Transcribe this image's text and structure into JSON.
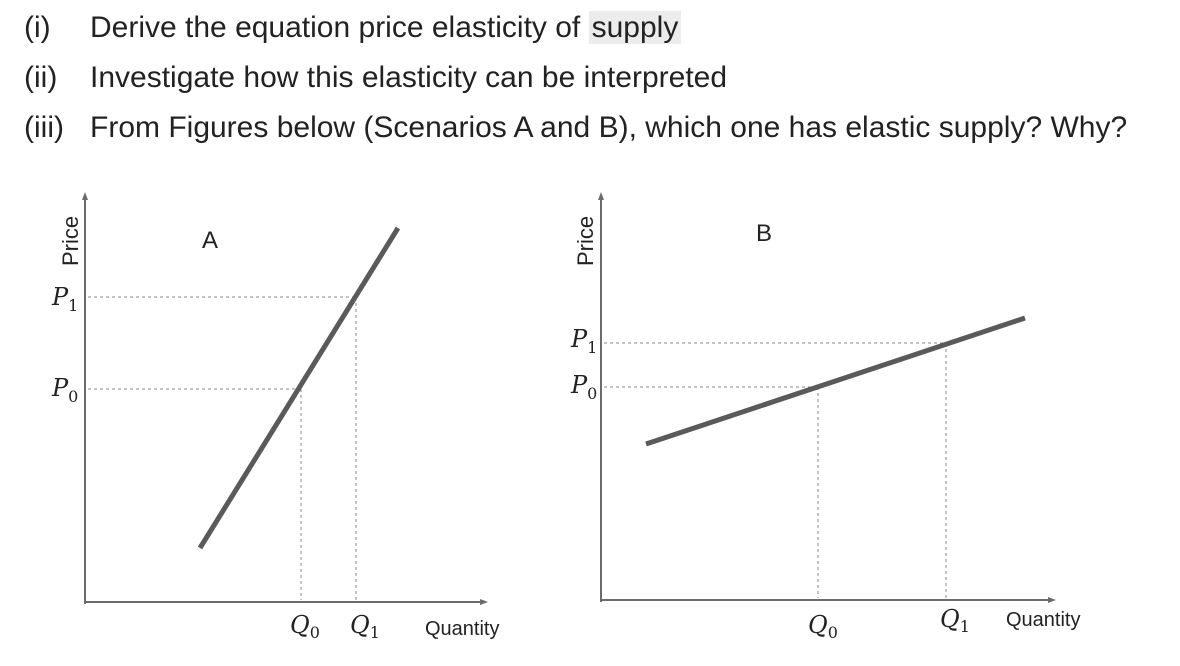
{
  "questions": [
    {
      "number": "(i)",
      "text_before": "Derive the equation price elasticity of ",
      "highlight": "supply"
    },
    {
      "number": "(ii)",
      "text": "Investigate how this elasticity can be interpreted"
    },
    {
      "number": "(iii)",
      "text": "From Figures below (Scenarios A and B), which one has elastic supply? Why?"
    }
  ],
  "figures": [
    {
      "id": "A",
      "label": "A",
      "y_axis_label": "Price",
      "x_axis_label": "Quantity",
      "price_levels": [
        "P",
        "P"
      ],
      "price_subs": [
        "1",
        "0"
      ],
      "quantity_levels": [
        "Q",
        "Q"
      ],
      "quantity_subs": [
        "0",
        "1"
      ]
    },
    {
      "id": "B",
      "label": "B",
      "y_axis_label": "Price",
      "x_axis_label": "Quantity",
      "price_levels": [
        "P",
        "P"
      ],
      "price_subs": [
        "1",
        "0"
      ],
      "quantity_levels": [
        "Q",
        "Q"
      ],
      "quantity_subs": [
        "0",
        "1"
      ]
    }
  ]
}
